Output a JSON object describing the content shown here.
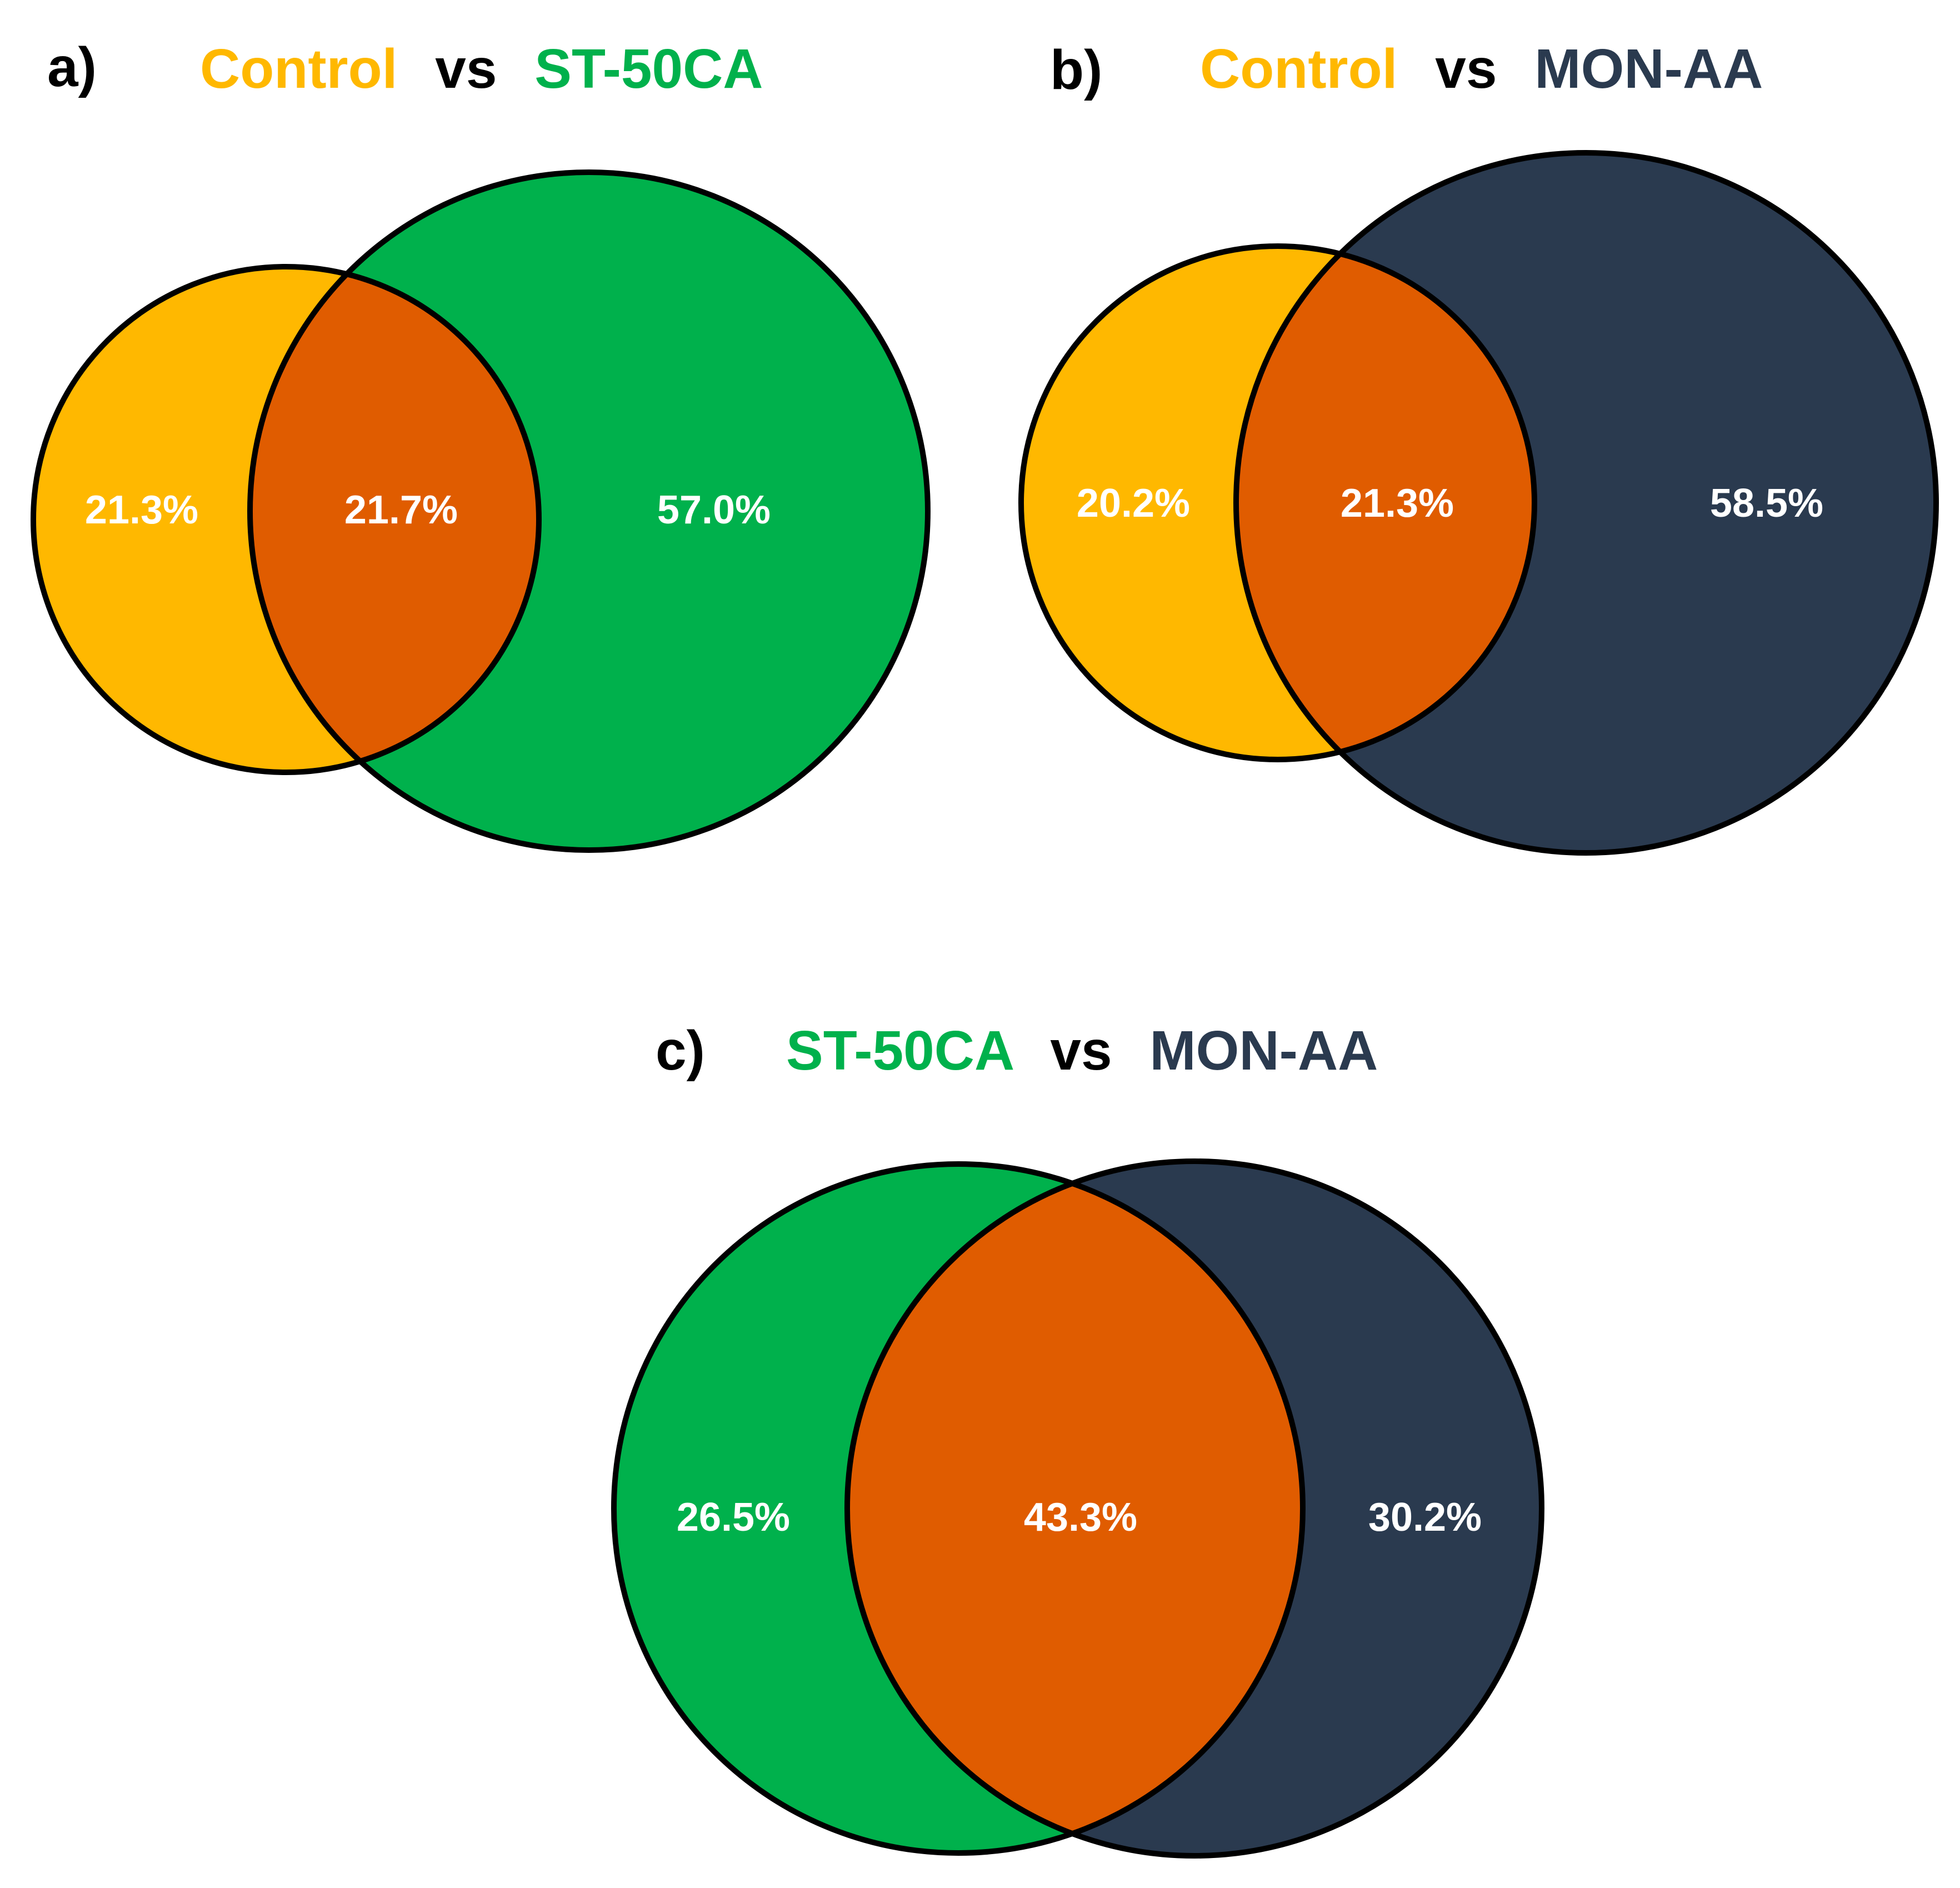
{
  "colors": {
    "control": "#FFB800",
    "st50ca": "#00B14C",
    "monaa": "#2A3A4F",
    "overlap": "#E05C00",
    "vs": "#000000",
    "outline": "#000000",
    "percent_text": "#FFFFFF"
  },
  "panels": [
    {
      "id": "a",
      "letter": "a)",
      "title": {
        "left": "Control",
        "vs": "vs",
        "right": "ST-50CA",
        "left_color": "control",
        "right_color": "st50ca"
      },
      "left_pct": "21.3%",
      "overlap_pct": "21.7%",
      "right_pct": "57.0%"
    },
    {
      "id": "b",
      "letter": "b)",
      "title": {
        "left": "Control",
        "vs": "vs",
        "right": "MON-AA",
        "left_color": "control",
        "right_color": "monaa"
      },
      "left_pct": "20.2%",
      "overlap_pct": "21.3%",
      "right_pct": "58.5%"
    },
    {
      "id": "c",
      "letter": "c)",
      "title": {
        "left": "ST-50CA",
        "vs": "vs",
        "right": "MON-AA",
        "left_color": "st50ca",
        "right_color": "monaa"
      },
      "left_pct": "26.5%",
      "overlap_pct": "43.3%",
      "right_pct": "30.2%"
    }
  ]
}
